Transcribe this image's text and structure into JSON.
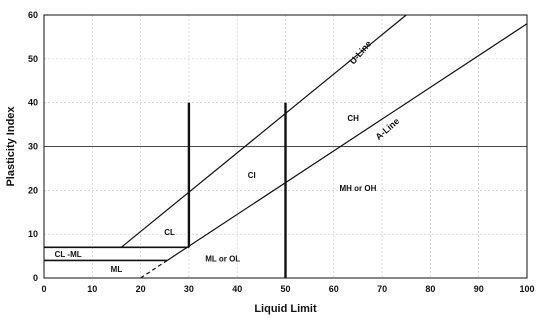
{
  "chart_data": {
    "type": "line",
    "xlabel": "Liquid Limit",
    "ylabel": "Plasticity Index",
    "xlim": [
      0,
      100
    ],
    "ylim": [
      0,
      60
    ],
    "x_ticks": [
      0,
      10,
      20,
      30,
      40,
      50,
      60,
      70,
      80,
      90,
      100
    ],
    "y_ticks": [
      0,
      10,
      20,
      30,
      40,
      50,
      60
    ],
    "grid": true,
    "series": [
      {
        "name": "U-Line",
        "x": [
          16,
          75
        ],
        "y": [
          7,
          60
        ]
      },
      {
        "name": "A-Line",
        "x": [
          25.5,
          100
        ],
        "y": [
          4,
          58
        ]
      }
    ],
    "a_line_dashed_extension": {
      "x": [
        20,
        25.5
      ],
      "y": [
        0,
        4
      ]
    },
    "boundaries": [
      {
        "x": [
          0,
          30
        ],
        "y": [
          7,
          7
        ]
      },
      {
        "x": [
          0,
          25.5
        ],
        "y": [
          4,
          4
        ]
      },
      {
        "x": [
          30,
          30
        ],
        "y": [
          7,
          40
        ]
      },
      {
        "x": [
          50,
          50
        ],
        "y": [
          0,
          40
        ]
      },
      {
        "x": [
          0,
          100
        ],
        "y": [
          30,
          30
        ]
      }
    ],
    "regions": [
      {
        "label": "CL",
        "x": 26,
        "y": 10.5
      },
      {
        "label": "CI",
        "x": 43,
        "y": 23.5
      },
      {
        "label": "CH",
        "x": 64,
        "y": 36.5
      },
      {
        "label": "MH or OH",
        "x": 65,
        "y": 20.5
      },
      {
        "label": "ML or OL",
        "x": 37,
        "y": 4.5
      },
      {
        "label": "CL -ML",
        "x": 5,
        "y": 5.5
      },
      {
        "label": "ML",
        "x": 15,
        "y": 2
      }
    ],
    "line_labels": [
      {
        "label": "U-Line",
        "x": 66,
        "y": 51,
        "angle_deg": -49
      },
      {
        "label": "A-Line",
        "x": 71.5,
        "y": 33.5,
        "angle_deg": -41
      }
    ]
  }
}
